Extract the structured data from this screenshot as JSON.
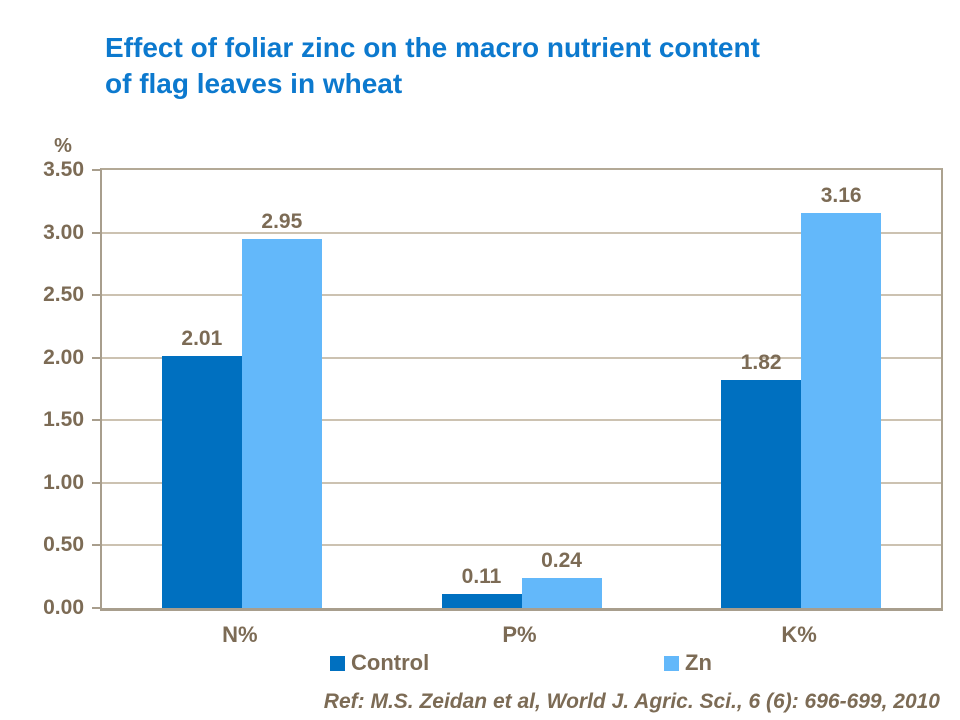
{
  "title": {
    "line1": "Effect of foliar zinc on the macro nutrient content",
    "line2": "of flag leaves in wheat"
  },
  "footer": {
    "reference": "Ref: M.S. Zeidan et al, World J. Agric. Sci., 6 (6): 696-699, 2010"
  },
  "colors": {
    "title_blue": "#0c79ce",
    "control_bar": "#0070c0",
    "zn_bar": "#63b8fa",
    "axis_text_brown": "#7c6b55",
    "gridline": "#ccc2b1",
    "axis_line": "#a89e8d"
  },
  "chart_data": {
    "type": "bar",
    "title": "Effect of foliar zinc on the macro nutrient content of flag leaves in wheat",
    "xlabel": "",
    "ylabel": "%",
    "categories": [
      "N%",
      "P%",
      "K%"
    ],
    "series": [
      {
        "name": "Control",
        "color_key": "control_bar",
        "values": [
          2.01,
          0.11,
          1.82
        ]
      },
      {
        "name": "Zn",
        "color_key": "zn_bar",
        "values": [
          2.95,
          0.24,
          3.16
        ]
      }
    ],
    "value_labels": {
      "Control": [
        "2.01",
        "0.11",
        "1.82"
      ],
      "Zn": [
        "2.95",
        "0.24",
        "3.16"
      ]
    },
    "ylim": [
      0,
      3.5
    ],
    "ytick_labels": [
      "0.00",
      "0.50",
      "1.00",
      "1.50",
      "2.00",
      "2.50",
      "3.00",
      "3.50"
    ],
    "grid": true,
    "legend_position": "bottom"
  }
}
